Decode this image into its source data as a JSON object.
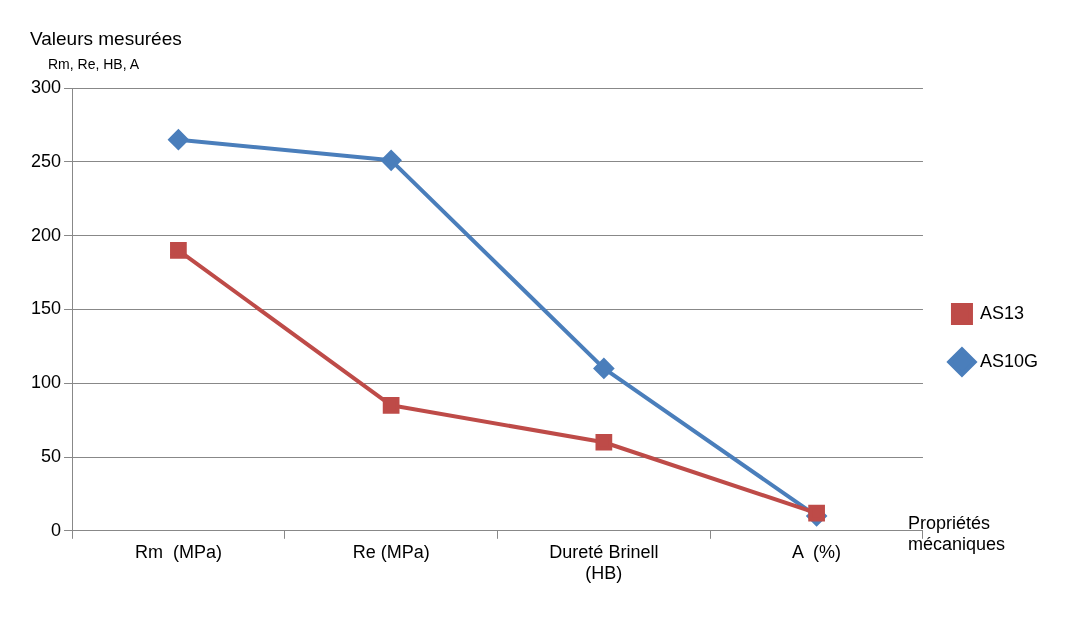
{
  "chart_data": {
    "type": "line",
    "title": "Valeurs mesurées",
    "subtitle": "Rm, Re, HB, A",
    "xlabel": "Propriétés mécaniques",
    "categories": [
      "Rm  (MPa)",
      "Re (MPa)",
      "Dureté Brinell (HB)",
      "A  (%)"
    ],
    "series": [
      {
        "name": "AS10G",
        "color": "#4a7ebb",
        "values": [
          265,
          251,
          110,
          10
        ],
        "marker": "diamond"
      },
      {
        "name": "AS13",
        "color": "#be4b48",
        "values": [
          190,
          85,
          60,
          12
        ],
        "marker": "square"
      }
    ],
    "ylim": [
      0,
      300
    ],
    "yticks": [
      0,
      50,
      100,
      150,
      200,
      250,
      300
    ],
    "grid": "y",
    "legend": "right",
    "line_style": "solid"
  }
}
